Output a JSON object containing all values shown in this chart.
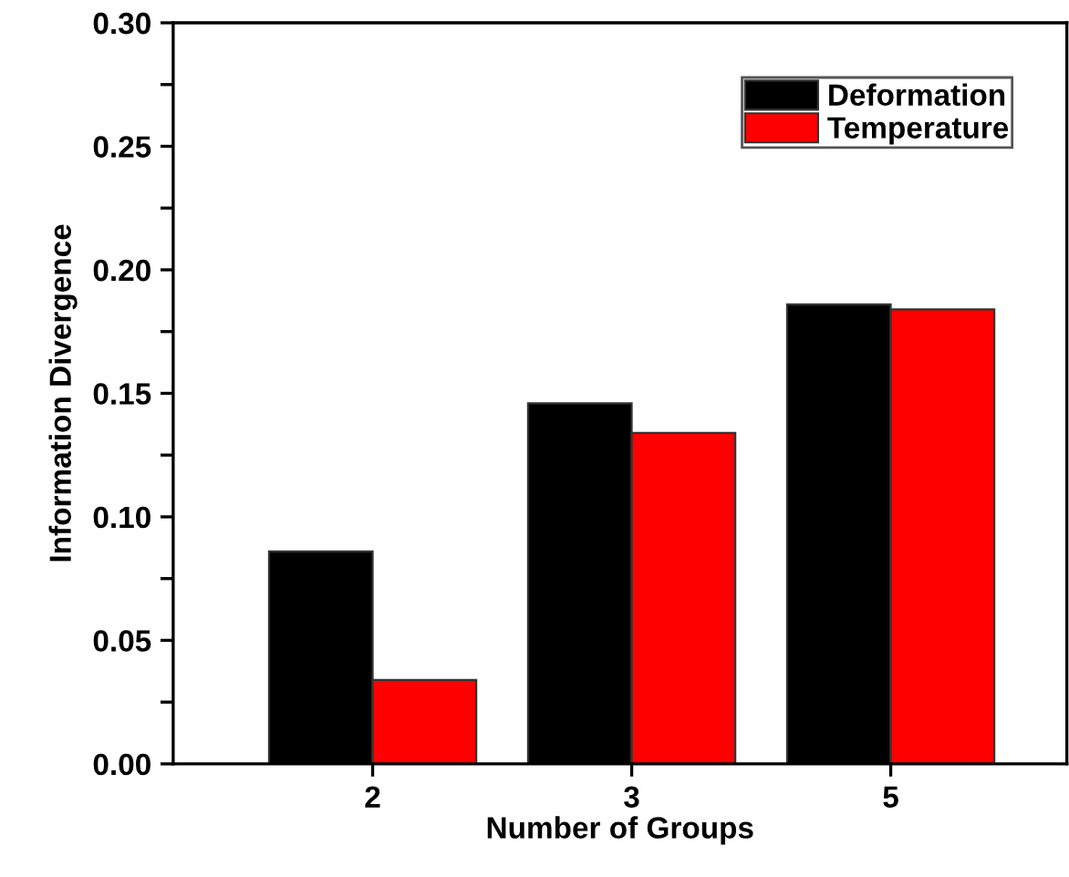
{
  "chart_data": {
    "type": "bar",
    "xlabel": "Number of Groups",
    "ylabel": "Information Divergence",
    "categories": [
      "2",
      "3",
      "5"
    ],
    "series": [
      {
        "name": "Deformation",
        "color": "#000000",
        "values": [
          0.086,
          0.146,
          0.186
        ]
      },
      {
        "name": "Temperature",
        "color": "#ff0000",
        "values": [
          0.034,
          0.134,
          0.184
        ]
      }
    ],
    "ylim": [
      0,
      0.3
    ],
    "yticks": [
      {
        "value": 0,
        "label": "0.00"
      },
      {
        "value": 0.025,
        "label": null
      },
      {
        "value": 0.05,
        "label": "0.05"
      },
      {
        "value": 0.075,
        "label": null
      },
      {
        "value": 0.1,
        "label": "0.10"
      },
      {
        "value": 0.125,
        "label": null
      },
      {
        "value": 0.15,
        "label": "0.15"
      },
      {
        "value": 0.175,
        "label": null
      },
      {
        "value": 0.2,
        "label": "0.20"
      },
      {
        "value": 0.225,
        "label": null
      },
      {
        "value": 0.25,
        "label": "0.25"
      },
      {
        "value": 0.275,
        "label": null
      },
      {
        "value": 0.3,
        "label": "0.30"
      }
    ],
    "legend": "top right",
    "grid": false
  }
}
